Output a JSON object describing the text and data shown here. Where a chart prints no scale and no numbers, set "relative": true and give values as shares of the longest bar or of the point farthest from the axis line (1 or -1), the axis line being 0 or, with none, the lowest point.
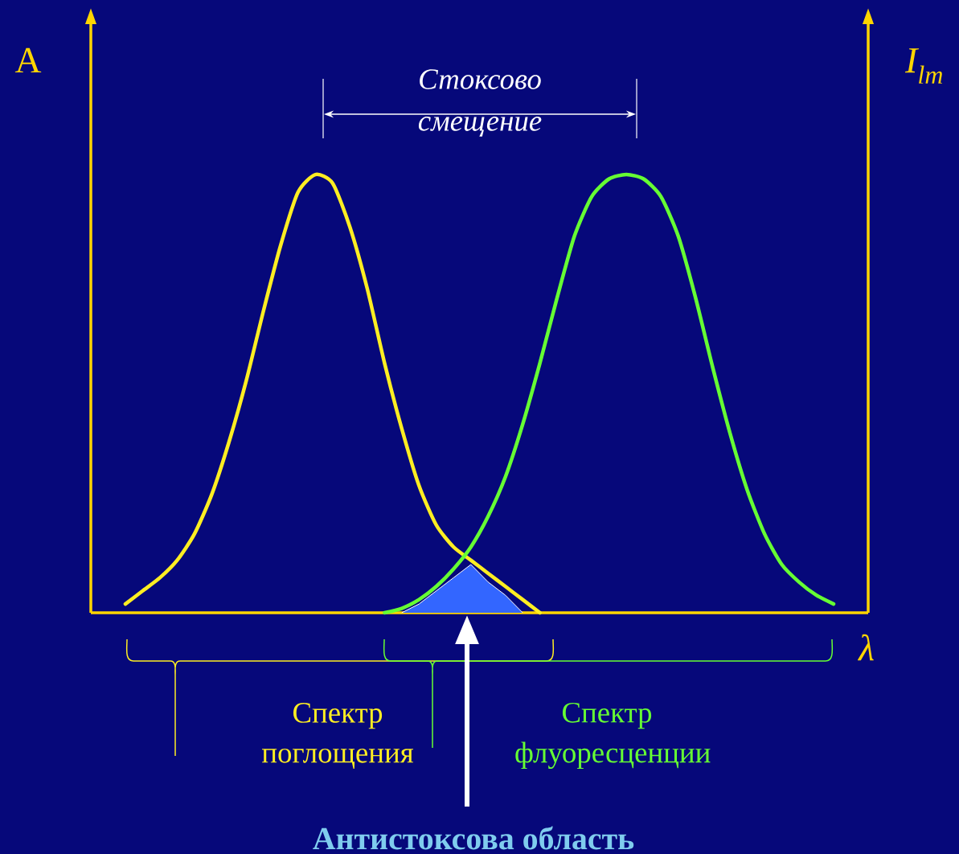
{
  "chart_data": {
    "type": "line",
    "relative": true,
    "ylabel": "A",
    "y2label": "I$_{lm}$",
    "xlabel": "λ",
    "categories": [
      null,
      null,
      null,
      null,
      null,
      null,
      null,
      null,
      null,
      null,
      null,
      null,
      null,
      null,
      null,
      null,
      null,
      null,
      null,
      null,
      null,
      null,
      null,
      null,
      null,
      null,
      null,
      null,
      null,
      null,
      null,
      null,
      null,
      null,
      null,
      null,
      null,
      null,
      null,
      null,
      null,
      null,
      null,
      null,
      null
    ],
    "series": [
      {
        "type": "area",
        "color": "#3366ff",
        "values": [
          null,
          null,
          null,
          null,
          null,
          null,
          null,
          null,
          null,
          null,
          null,
          null,
          null,
          null,
          null,
          null,
          null,
          null,
          0.0,
          0.02,
          0.05,
          0.08,
          0.11,
          0.07,
          0.04,
          0.0,
          null,
          null,
          null,
          null,
          null,
          null,
          null,
          null,
          null,
          null,
          null,
          null,
          null,
          null,
          null,
          null,
          null,
          null,
          null
        ]
      },
      {
        "name": "Спектр поглощения",
        "color": "#ffee22",
        "values": [
          null,
          null,
          0.02,
          0.05,
          0.08,
          0.12,
          0.18,
          0.27,
          0.39,
          0.53,
          0.69,
          0.84,
          0.96,
          1.0,
          0.98,
          0.88,
          0.74,
          0.57,
          0.42,
          0.29,
          0.2,
          0.15,
          0.12,
          0.09,
          0.06,
          0.03,
          0.0,
          null,
          null,
          null,
          null,
          null,
          null,
          null,
          null,
          null,
          null,
          null,
          null,
          null,
          null,
          null,
          null,
          null,
          null
        ]
      },
      {
        "name": "Спектр флуоресценции",
        "color": "#66ff33",
        "values": [
          null,
          null,
          null,
          null,
          null,
          null,
          null,
          null,
          null,
          null,
          null,
          null,
          null,
          null,
          null,
          null,
          null,
          0.0,
          0.01,
          0.03,
          0.06,
          0.1,
          0.15,
          0.22,
          0.31,
          0.43,
          0.57,
          0.72,
          0.86,
          0.95,
          0.99,
          1.0,
          0.99,
          0.95,
          0.86,
          0.72,
          0.56,
          0.41,
          0.28,
          0.18,
          0.11,
          0.07,
          0.04,
          0.02,
          null
        ]
      }
    ],
    "annotations": [
      "Стоксово смещение",
      "Антистоксова область"
    ]
  }
}
